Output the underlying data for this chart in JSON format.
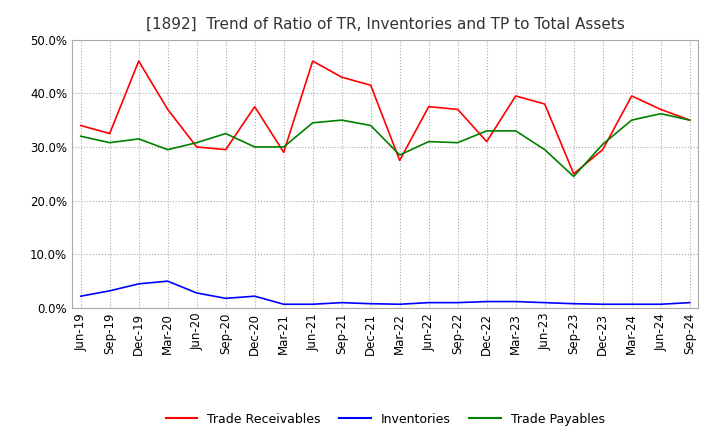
{
  "title": "[1892]  Trend of Ratio of TR, Inventories and TP to Total Assets",
  "x_labels": [
    "Jun-19",
    "Sep-19",
    "Dec-19",
    "Mar-20",
    "Jun-20",
    "Sep-20",
    "Dec-20",
    "Mar-21",
    "Jun-21",
    "Sep-21",
    "Dec-21",
    "Mar-22",
    "Jun-22",
    "Sep-22",
    "Dec-22",
    "Mar-23",
    "Jun-23",
    "Sep-23",
    "Dec-23",
    "Mar-24",
    "Jun-24",
    "Sep-24"
  ],
  "trade_receivables": [
    0.34,
    0.325,
    0.46,
    0.37,
    0.3,
    0.295,
    0.375,
    0.29,
    0.46,
    0.43,
    0.415,
    0.275,
    0.375,
    0.37,
    0.31,
    0.395,
    0.38,
    0.25,
    0.295,
    0.395,
    0.37,
    0.35
  ],
  "inventories": [
    0.022,
    0.032,
    0.045,
    0.05,
    0.028,
    0.018,
    0.022,
    0.007,
    0.007,
    0.01,
    0.008,
    0.007,
    0.01,
    0.01,
    0.012,
    0.012,
    0.01,
    0.008,
    0.007,
    0.007,
    0.007,
    0.01
  ],
  "trade_payables": [
    0.32,
    0.308,
    0.315,
    0.295,
    0.308,
    0.325,
    0.3,
    0.3,
    0.345,
    0.35,
    0.34,
    0.285,
    0.31,
    0.308,
    0.33,
    0.33,
    0.295,
    0.245,
    0.305,
    0.35,
    0.362,
    0.35
  ],
  "tr_color": "#ff0000",
  "inv_color": "#0000ff",
  "tp_color": "#008000",
  "ylim_min": 0.0,
  "ylim_max": 0.5,
  "ytick_step": 0.1,
  "legend_labels": [
    "Trade Receivables",
    "Inventories",
    "Trade Payables"
  ],
  "title_fontsize": 11,
  "tick_fontsize": 8.5
}
